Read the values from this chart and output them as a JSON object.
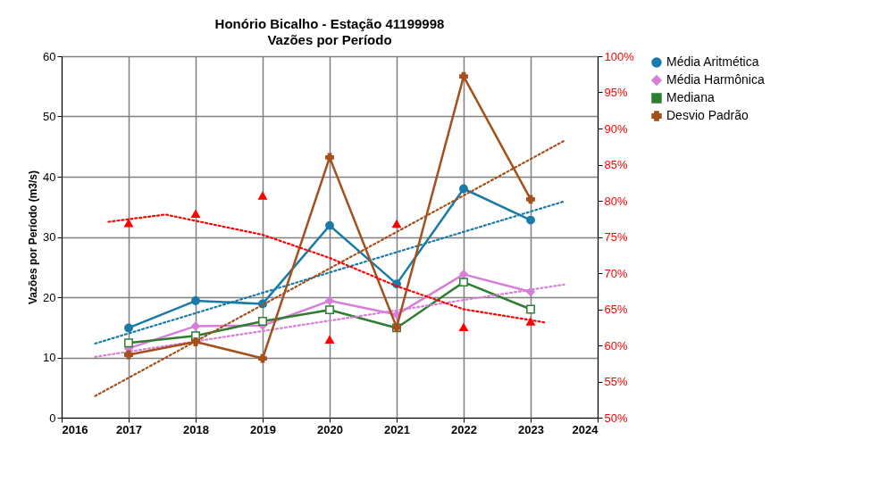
{
  "chart_data": {
    "type": "line",
    "title": "Honório Bicalho -  Estação 41199998",
    "subtitle": "Vazões por Período",
    "ylabel": "Vazões por Período (m3/s)",
    "x": [
      2017,
      2018,
      2019,
      2020,
      2021,
      2022,
      2023
    ],
    "xlim": [
      2016,
      2024
    ],
    "xticks": [
      2016,
      2017,
      2018,
      2019,
      2020,
      2021,
      2022,
      2023,
      2024
    ],
    "ylim": [
      0,
      60
    ],
    "yticks": [
      0,
      10,
      20,
      30,
      40,
      50,
      60
    ],
    "y2lim": [
      50,
      100
    ],
    "y2ticks": [
      {
        "value": 50,
        "label": "50%"
      },
      {
        "value": 55,
        "label": "55%"
      },
      {
        "value": 60,
        "label": "60%"
      },
      {
        "value": 65,
        "label": "65%"
      },
      {
        "value": 70,
        "label": "70%"
      },
      {
        "value": 75,
        "label": "75%"
      },
      {
        "value": 80,
        "label": "80%"
      },
      {
        "value": 85,
        "label": "85%"
      },
      {
        "value": 90,
        "label": "90%"
      },
      {
        "value": 95,
        "label": "95%"
      },
      {
        "value": 100,
        "label": "100%"
      }
    ],
    "grid": true,
    "legend": "right",
    "series": [
      {
        "name": "Média Aritmética",
        "color": "#1a7aa8",
        "marker": "circle",
        "line_style": "solid",
        "values": [
          14.9,
          19.4,
          18.9,
          31.9,
          22.2,
          38.0,
          32.8
        ]
      },
      {
        "name": "Média Harmônica",
        "color": "#d77fd7",
        "marker": "diamond",
        "line_style": "solid",
        "values": [
          11.5,
          15.2,
          15.3,
          19.4,
          17.1,
          23.8,
          20.9
        ]
      },
      {
        "name": "Mediana",
        "color": "#2e7d32",
        "marker": "square",
        "line_style": "solid",
        "values": [
          12.4,
          13.6,
          16.0,
          17.9,
          14.9,
          22.5,
          18.0
        ]
      },
      {
        "name": "Desvio Padrão",
        "color": "#a5501c",
        "marker": "cross",
        "line_style": "solid",
        "axis": "y2",
        "values": [
          58.7,
          60.5,
          58.2,
          86.0,
          62.5,
          97.2,
          80.2
        ]
      },
      {
        "type": "scatter",
        "color": "#ff0000",
        "marker": "triangle",
        "axis": "y2",
        "values": [
          76.9,
          78.2,
          80.7,
          60.8,
          76.8,
          62.5,
          63.3
        ]
      },
      {
        "type": "line",
        "color": "#1a7aa8",
        "marker": "none",
        "line_style": "dotted",
        "x": [
          2016.5,
          2023.5
        ],
        "values": [
          12.3,
          35.9
        ]
      },
      {
        "type": "line",
        "color": "#d77fd7",
        "marker": "none",
        "line_style": "dotted",
        "x": [
          2016.5,
          2023.5
        ],
        "values": [
          10.1,
          22.1
        ]
      },
      {
        "type": "line",
        "color": "#a5501c",
        "marker": "none",
        "line_style": "dotted",
        "axis": "y2",
        "x": [
          2016.5,
          2023.5
        ],
        "values": [
          53.0,
          88.3
        ]
      },
      {
        "type": "line",
        "color": "#ff0000",
        "marker": "none",
        "line_style": "dotted",
        "axis": "y2",
        "x": [
          2016.7,
          2017.55,
          2019,
          2020,
          2021,
          2022,
          2023.2
        ],
        "values": [
          77.1,
          78.1,
          75.3,
          72.1,
          68.2,
          65.0,
          63.2
        ]
      }
    ]
  }
}
